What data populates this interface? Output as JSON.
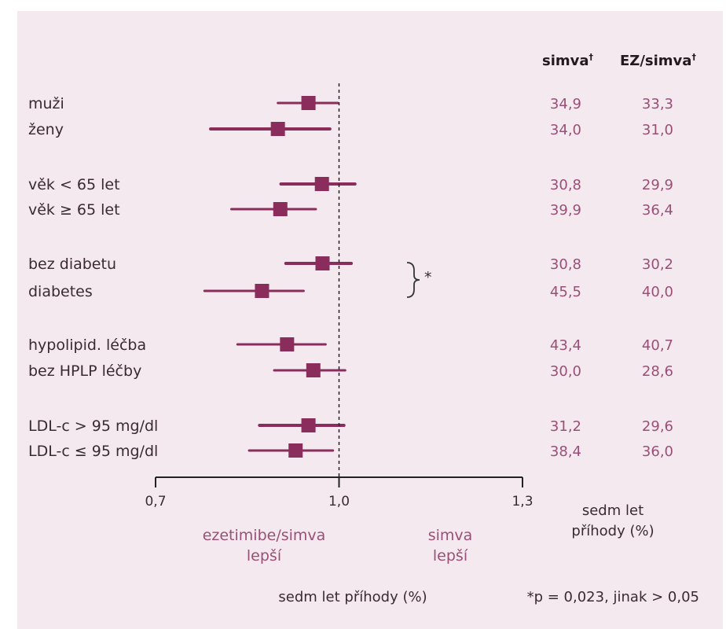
{
  "chart_data": {
    "type": "forest",
    "columns": {
      "simva": "simva",
      "ezsimva": "EZ/simva",
      "dagger": "†"
    },
    "x_ticks": [
      "0,7",
      "1,0",
      "1,3"
    ],
    "xlim": [
      0.7,
      1.3
    ],
    "reference_line": 1.0,
    "rows": [
      {
        "label": "muži",
        "est": 0.95,
        "lo": 0.9,
        "hi": 0.998,
        "simva": "34,9",
        "ezsimva": "33,3"
      },
      {
        "label": "ženy",
        "est": 0.9,
        "lo": 0.79,
        "hi": 0.985,
        "simva": "34,0",
        "ezsimva": "31,0"
      },
      {
        "label": "věk < 65 let",
        "est": 0.972,
        "lo": 0.905,
        "hi": 1.026,
        "simva": "30,8",
        "ezsimva": "29,9"
      },
      {
        "label": "věk ≥ 65 let",
        "est": 0.904,
        "lo": 0.824,
        "hi": 0.962,
        "simva": "39,9",
        "ezsimva": "36,4"
      },
      {
        "label": "bez diabetu",
        "est": 0.973,
        "lo": 0.913,
        "hi": 1.02,
        "simva": "30,8",
        "ezsimva": "30,2"
      },
      {
        "label": "diabetes",
        "est": 0.874,
        "lo": 0.78,
        "hi": 0.942,
        "simva": "45,5",
        "ezsimva": "40,0"
      },
      {
        "label": "hypolipid. léčba",
        "est": 0.915,
        "lo": 0.834,
        "hi": 0.978,
        "simva": "43,4",
        "ezsimva": "40,7"
      },
      {
        "label": "bez HPLP léčby",
        "est": 0.958,
        "lo": 0.894,
        "hi": 1.01,
        "simva": "30,0",
        "ezsimva": "28,6"
      },
      {
        "label": "LDL-c > 95 mg/dl",
        "est": 0.95,
        "lo": 0.87,
        "hi": 1.008,
        "simva": "31,2",
        "ezsimva": "29,6"
      },
      {
        "label": "LDL-c ≤ 95 mg/dl",
        "est": 0.929,
        "lo": 0.853,
        "hi": 0.99,
        "simva": "38,4",
        "ezsimva": "36,0"
      }
    ],
    "bracket_mark": "*",
    "left_label": [
      "ezetimibe/simva",
      "lepší"
    ],
    "right_label": [
      "simva",
      "lepší"
    ],
    "column_caption": [
      "sedm let",
      "příhody (%)"
    ],
    "xlabel": "sedm let příhody (%)",
    "footnote": "*p = 0,023, jinak > 0,05",
    "colors": {
      "marker": "#8b2d5c",
      "panel": "#f4e9ee",
      "values": "#9a4f78"
    }
  }
}
